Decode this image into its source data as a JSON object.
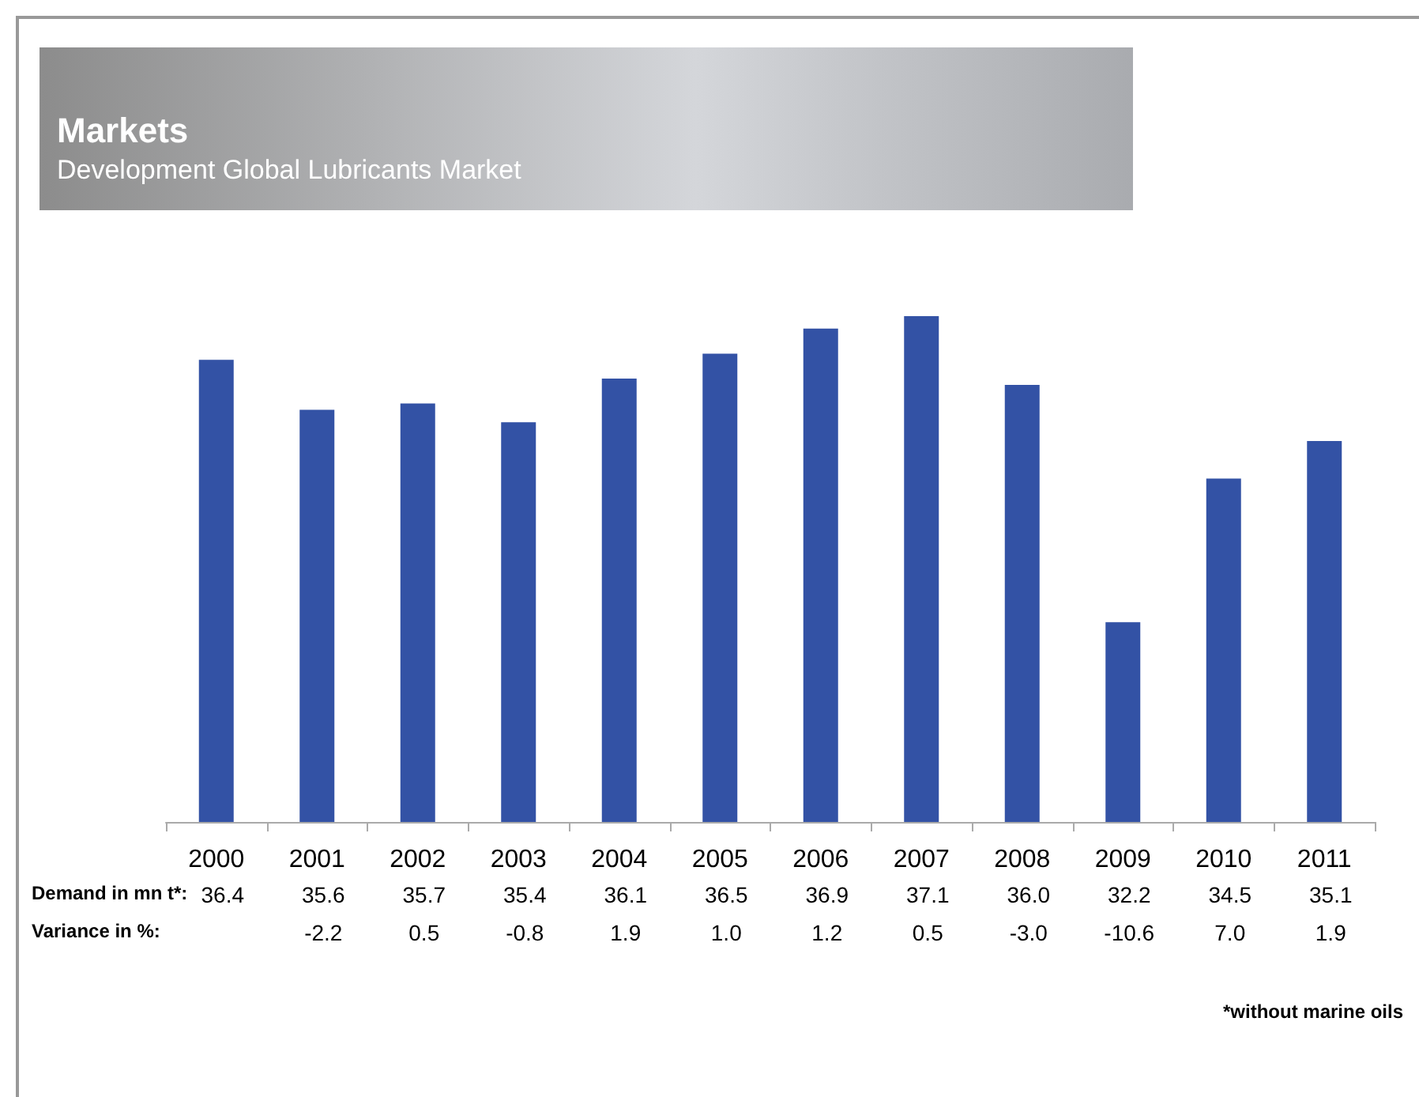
{
  "chart_data": {
    "type": "bar",
    "title": "Markets",
    "subtitle": "Development Global Lubricants Market",
    "categories": [
      "2000",
      "2001",
      "2002",
      "2003",
      "2004",
      "2005",
      "2006",
      "2007",
      "2008",
      "2009",
      "2010",
      "2011"
    ],
    "series": [
      {
        "name": "Demand in mn t*:",
        "color": "#3352a5",
        "values": [
          36.4,
          35.6,
          35.7,
          35.4,
          36.1,
          36.5,
          36.9,
          37.1,
          36.0,
          32.2,
          34.5,
          35.1
        ],
        "value_labels": [
          "36.4",
          "35.6",
          "35.7",
          "35.4",
          "36.1",
          "36.5",
          "36.9",
          "37.1",
          "36.0",
          "32.2",
          "34.5",
          "35.1"
        ]
      }
    ],
    "ylim": [
      29,
      37.1
    ],
    "tick_labels": "x",
    "grid": false,
    "legend": false,
    "annotations": [
      "Variance in %:",
      "-2.2",
      "0.5",
      "-0.8",
      "1.9",
      "1.0",
      "1.2",
      "0.5",
      "-3.0",
      "-10.6",
      "7.0",
      "1.9",
      "*without marine oils"
    ]
  }
}
